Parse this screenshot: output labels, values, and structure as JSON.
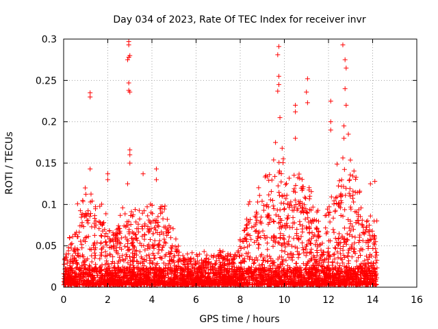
{
  "chart_data": {
    "type": "scatter",
    "title": "Day 034 of 2023, Rate Of TEC Index for receiver invr",
    "xlabel": "GPS time / hours",
    "ylabel": "ROTI / TECUs",
    "xlim": [
      0,
      16
    ],
    "ylim": [
      0,
      0.3
    ],
    "xticks": [
      0,
      2,
      4,
      6,
      8,
      10,
      12,
      14,
      16
    ],
    "yticks": [
      0,
      0.05,
      0.1,
      0.15,
      0.2,
      0.25,
      0.3
    ],
    "ytick_labels": [
      "0",
      "0.05",
      "0.1",
      "0.15",
      "0.2",
      "0.25",
      "0.3"
    ],
    "grid": true,
    "marker": "+",
    "series_color": "#ff0000",
    "data_range_hours": [
      0,
      14.2
    ],
    "notable_points": [
      {
        "x": 1.2,
        "y": 0.235
      },
      {
        "x": 1.2,
        "y": 0.23
      },
      {
        "x": 1.2,
        "y": 0.143
      },
      {
        "x": 2.0,
        "y": 0.137
      },
      {
        "x": 2.0,
        "y": 0.13
      },
      {
        "x": 2.95,
        "y": 0.297
      },
      {
        "x": 2.95,
        "y": 0.293
      },
      {
        "x": 2.95,
        "y": 0.278
      },
      {
        "x": 3.0,
        "y": 0.28
      },
      {
        "x": 2.9,
        "y": 0.275
      },
      {
        "x": 2.95,
        "y": 0.247
      },
      {
        "x": 2.95,
        "y": 0.238
      },
      {
        "x": 3.0,
        "y": 0.236
      },
      {
        "x": 3.0,
        "y": 0.166
      },
      {
        "x": 3.0,
        "y": 0.16
      },
      {
        "x": 3.0,
        "y": 0.15
      },
      {
        "x": 2.9,
        "y": 0.125
      },
      {
        "x": 3.6,
        "y": 0.137
      },
      {
        "x": 4.2,
        "y": 0.143
      },
      {
        "x": 4.2,
        "y": 0.13
      },
      {
        "x": 9.75,
        "y": 0.291
      },
      {
        "x": 9.7,
        "y": 0.281
      },
      {
        "x": 9.75,
        "y": 0.255
      },
      {
        "x": 9.75,
        "y": 0.245
      },
      {
        "x": 9.7,
        "y": 0.237
      },
      {
        "x": 9.8,
        "y": 0.205
      },
      {
        "x": 9.6,
        "y": 0.175
      },
      {
        "x": 9.9,
        "y": 0.168
      },
      {
        "x": 10.5,
        "y": 0.22
      },
      {
        "x": 10.5,
        "y": 0.212
      },
      {
        "x": 10.5,
        "y": 0.18
      },
      {
        "x": 11.05,
        "y": 0.252
      },
      {
        "x": 11.0,
        "y": 0.236
      },
      {
        "x": 11.05,
        "y": 0.223
      },
      {
        "x": 12.1,
        "y": 0.225
      },
      {
        "x": 12.1,
        "y": 0.2
      },
      {
        "x": 12.1,
        "y": 0.19
      },
      {
        "x": 12.65,
        "y": 0.293
      },
      {
        "x": 12.75,
        "y": 0.275
      },
      {
        "x": 12.8,
        "y": 0.265
      },
      {
        "x": 12.75,
        "y": 0.24
      },
      {
        "x": 12.8,
        "y": 0.22
      },
      {
        "x": 12.7,
        "y": 0.195
      },
      {
        "x": 12.9,
        "y": 0.185
      },
      {
        "x": 12.7,
        "y": 0.18
      },
      {
        "x": 13.9,
        "y": 0.125
      },
      {
        "x": 14.1,
        "y": 0.128
      }
    ]
  }
}
